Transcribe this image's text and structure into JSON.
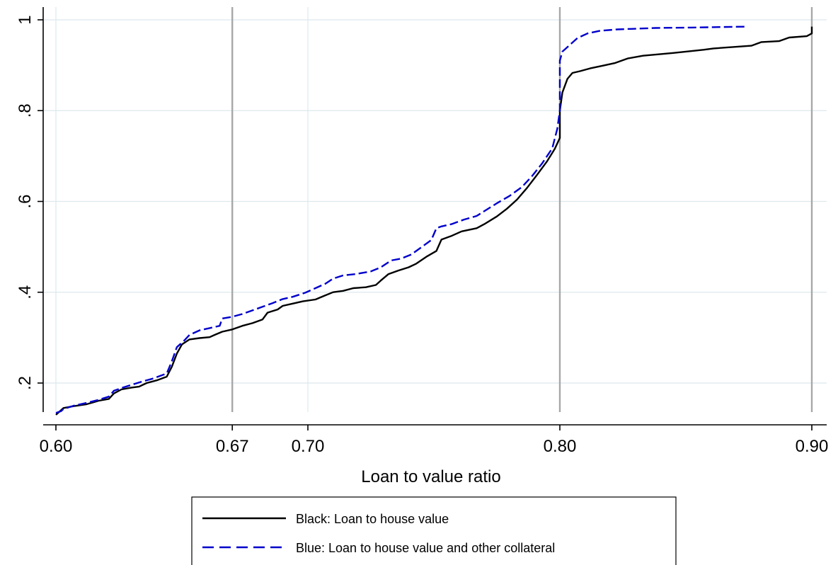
{
  "chart_data": {
    "type": "line",
    "title": "",
    "xlabel": "Loan to value ratio",
    "ylabel": "",
    "xlim": [
      0.596,
      0.901
    ],
    "ylim": [
      0.11,
      1.02
    ],
    "x_ticks": [
      {
        "value": 0.6,
        "label": "0.60"
      },
      {
        "value": 0.67,
        "label": "0.67"
      },
      {
        "value": 0.7,
        "label": "0.70"
      },
      {
        "value": 0.8,
        "label": "0.80"
      },
      {
        "value": 0.9,
        "label": "0.90"
      }
    ],
    "y_ticks": [
      {
        "value": 0.2,
        "label": ".2"
      },
      {
        "value": 0.4,
        "label": ".4"
      },
      {
        "value": 0.6,
        "label": ".6"
      },
      {
        "value": 0.8,
        "label": ".8"
      },
      {
        "value": 1.0,
        "label": "1"
      }
    ],
    "vertical_reference_lines": [
      0.67,
      0.8,
      0.9
    ],
    "grid": true,
    "legend_position": "bottom-center",
    "colors": {
      "black_series": "#000000",
      "blue_series": "#0000cc",
      "gridline": "#dde8ee",
      "reference_line": "#a8a8a8",
      "axis": "#000000"
    },
    "series": [
      {
        "name": "Black: Loan to house value",
        "style": "solid",
        "points": [
          [
            0.6,
            0.13
          ],
          [
            0.603,
            0.145
          ],
          [
            0.607,
            0.149
          ],
          [
            0.612,
            0.153
          ],
          [
            0.617,
            0.161
          ],
          [
            0.621,
            0.165
          ],
          [
            0.623,
            0.177
          ],
          [
            0.626,
            0.186
          ],
          [
            0.63,
            0.19
          ],
          [
            0.633,
            0.192
          ],
          [
            0.636,
            0.2
          ],
          [
            0.64,
            0.206
          ],
          [
            0.644,
            0.214
          ],
          [
            0.646,
            0.236
          ],
          [
            0.648,
            0.265
          ],
          [
            0.65,
            0.285
          ],
          [
            0.653,
            0.296
          ],
          [
            0.657,
            0.299
          ],
          [
            0.661,
            0.301
          ],
          [
            0.663,
            0.306
          ],
          [
            0.666,
            0.313
          ],
          [
            0.67,
            0.318
          ],
          [
            0.674,
            0.326
          ],
          [
            0.678,
            0.332
          ],
          [
            0.682,
            0.34
          ],
          [
            0.684,
            0.355
          ],
          [
            0.688,
            0.362
          ],
          [
            0.69,
            0.37
          ],
          [
            0.694,
            0.375
          ],
          [
            0.698,
            0.38
          ],
          [
            0.703,
            0.384
          ],
          [
            0.706,
            0.391
          ],
          [
            0.71,
            0.4
          ],
          [
            0.714,
            0.403
          ],
          [
            0.718,
            0.409
          ],
          [
            0.723,
            0.411
          ],
          [
            0.727,
            0.416
          ],
          [
            0.729,
            0.426
          ],
          [
            0.732,
            0.44
          ],
          [
            0.736,
            0.448
          ],
          [
            0.74,
            0.455
          ],
          [
            0.743,
            0.463
          ],
          [
            0.747,
            0.478
          ],
          [
            0.751,
            0.491
          ],
          [
            0.753,
            0.516
          ],
          [
            0.757,
            0.524
          ],
          [
            0.761,
            0.534
          ],
          [
            0.767,
            0.541
          ],
          [
            0.77,
            0.55
          ],
          [
            0.775,
            0.567
          ],
          [
            0.779,
            0.584
          ],
          [
            0.783,
            0.604
          ],
          [
            0.787,
            0.63
          ],
          [
            0.791,
            0.659
          ],
          [
            0.795,
            0.689
          ],
          [
            0.798,
            0.716
          ],
          [
            0.8,
            0.74
          ],
          [
            0.8,
            0.8
          ],
          [
            0.801,
            0.84
          ],
          [
            0.803,
            0.87
          ],
          [
            0.805,
            0.883
          ],
          [
            0.808,
            0.887
          ],
          [
            0.812,
            0.893
          ],
          [
            0.817,
            0.899
          ],
          [
            0.822,
            0.905
          ],
          [
            0.827,
            0.915
          ],
          [
            0.833,
            0.921
          ],
          [
            0.845,
            0.927
          ],
          [
            0.857,
            0.934
          ],
          [
            0.861,
            0.937
          ],
          [
            0.876,
            0.943
          ],
          [
            0.88,
            0.951
          ],
          [
            0.887,
            0.953
          ],
          [
            0.891,
            0.961
          ],
          [
            0.898,
            0.964
          ],
          [
            0.9,
            0.97
          ],
          [
            0.9,
            0.985
          ]
        ]
      },
      {
        "name": "Blue: Loan to house value and other collateral",
        "style": "dashed",
        "points": [
          [
            0.6,
            0.134
          ],
          [
            0.602,
            0.138
          ],
          [
            0.603,
            0.143
          ],
          [
            0.607,
            0.15
          ],
          [
            0.612,
            0.156
          ],
          [
            0.617,
            0.163
          ],
          [
            0.621,
            0.17
          ],
          [
            0.623,
            0.183
          ],
          [
            0.626,
            0.189
          ],
          [
            0.63,
            0.196
          ],
          [
            0.634,
            0.203
          ],
          [
            0.638,
            0.209
          ],
          [
            0.641,
            0.215
          ],
          [
            0.644,
            0.221
          ],
          [
            0.646,
            0.248
          ],
          [
            0.648,
            0.279
          ],
          [
            0.651,
            0.294
          ],
          [
            0.653,
            0.306
          ],
          [
            0.657,
            0.316
          ],
          [
            0.661,
            0.321
          ],
          [
            0.665,
            0.326
          ],
          [
            0.666,
            0.342
          ],
          [
            0.67,
            0.346
          ],
          [
            0.674,
            0.352
          ],
          [
            0.678,
            0.36
          ],
          [
            0.682,
            0.368
          ],
          [
            0.686,
            0.376
          ],
          [
            0.69,
            0.385
          ],
          [
            0.694,
            0.39
          ],
          [
            0.699,
            0.399
          ],
          [
            0.703,
            0.409
          ],
          [
            0.707,
            0.419
          ],
          [
            0.71,
            0.43
          ],
          [
            0.714,
            0.437
          ],
          [
            0.719,
            0.44
          ],
          [
            0.725,
            0.446
          ],
          [
            0.729,
            0.455
          ],
          [
            0.733,
            0.47
          ],
          [
            0.737,
            0.474
          ],
          [
            0.741,
            0.483
          ],
          [
            0.745,
            0.499
          ],
          [
            0.749,
            0.515
          ],
          [
            0.751,
            0.541
          ],
          [
            0.753,
            0.545
          ],
          [
            0.757,
            0.55
          ],
          [
            0.762,
            0.56
          ],
          [
            0.767,
            0.568
          ],
          [
            0.771,
            0.582
          ],
          [
            0.775,
            0.596
          ],
          [
            0.78,
            0.612
          ],
          [
            0.785,
            0.632
          ],
          [
            0.789,
            0.656
          ],
          [
            0.793,
            0.684
          ],
          [
            0.797,
            0.717
          ],
          [
            0.799,
            0.76
          ],
          [
            0.8,
            0.8
          ],
          [
            0.8,
            0.86
          ],
          [
            0.8,
            0.91
          ],
          [
            0.801,
            0.93
          ],
          [
            0.804,
            0.945
          ],
          [
            0.807,
            0.96
          ],
          [
            0.811,
            0.97
          ],
          [
            0.816,
            0.976
          ],
          [
            0.823,
            0.979
          ],
          [
            0.838,
            0.982
          ],
          [
            0.852,
            0.983
          ],
          [
            0.874,
            0.985
          ]
        ]
      }
    ]
  }
}
